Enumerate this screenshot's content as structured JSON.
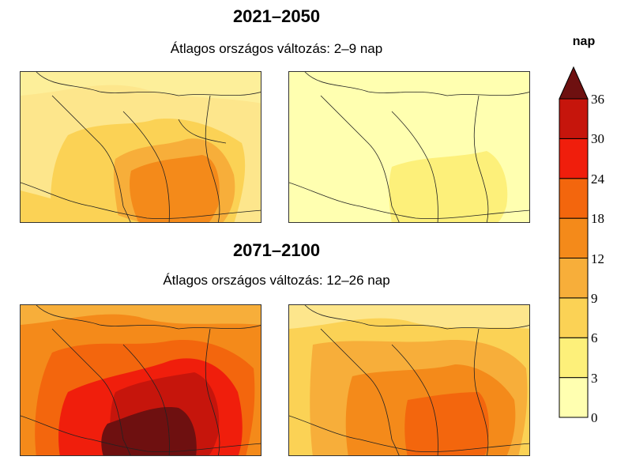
{
  "sections": [
    {
      "period": "2021–2050",
      "summary": "Átlagos országos változás: 2–9 nap"
    },
    {
      "period": "2071–2100",
      "summary": "Átlagos országos változás: 12–26 nap"
    }
  ],
  "legend": {
    "unit": "nap",
    "levels": [
      "0",
      "3",
      "6",
      "9",
      "12",
      "18",
      "24",
      "30",
      "36"
    ],
    "colors": [
      "#ffffb0",
      "#fdf07a",
      "#fbd255",
      "#f7ae3a",
      "#f48a1a",
      "#f3660d",
      "#f01e0c",
      "#c6150c",
      "#6e1010"
    ]
  }
}
